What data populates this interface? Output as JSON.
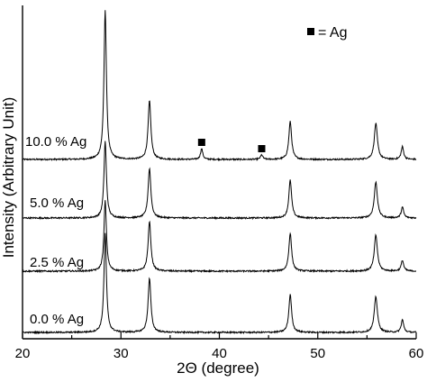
{
  "chart_data": {
    "type": "line",
    "title": "",
    "xlabel": "2Θ (degree)",
    "ylabel": "Intensity (Arbitrary Unit)",
    "xlim": [
      20,
      60
    ],
    "xticks": [
      20,
      30,
      40,
      50,
      60
    ],
    "legend": {
      "symbol": "square",
      "text": "= Ag"
    },
    "peaks": [
      {
        "x": 28.4,
        "width": 0.22
      },
      {
        "x": 32.9,
        "width": 0.25
      },
      {
        "x": 47.2,
        "width": 0.25
      },
      {
        "x": 55.9,
        "width": 0.28
      },
      {
        "x": 58.6,
        "width": 0.22
      }
    ],
    "series": [
      {
        "name": "10.0 % Ag",
        "peak_heights": [
          165,
          65,
          42,
          40,
          14
        ],
        "ag_peaks": [
          {
            "x": 38.2,
            "height": 12
          },
          {
            "x": 44.3,
            "height": 5
          }
        ]
      },
      {
        "name": "5.0 % Ag",
        "peak_heights": [
          85,
          55,
          42,
          40,
          12
        ],
        "ag_peaks": []
      },
      {
        "name": "2.5 % Ag",
        "peak_heights": [
          78,
          55,
          42,
          40,
          12
        ],
        "ag_peaks": []
      },
      {
        "name": "0.0 % Ag",
        "peak_heights": [
          110,
          60,
          42,
          40,
          14
        ],
        "ag_peaks": []
      }
    ],
    "ag_markers": [
      38.2,
      44.3
    ]
  }
}
